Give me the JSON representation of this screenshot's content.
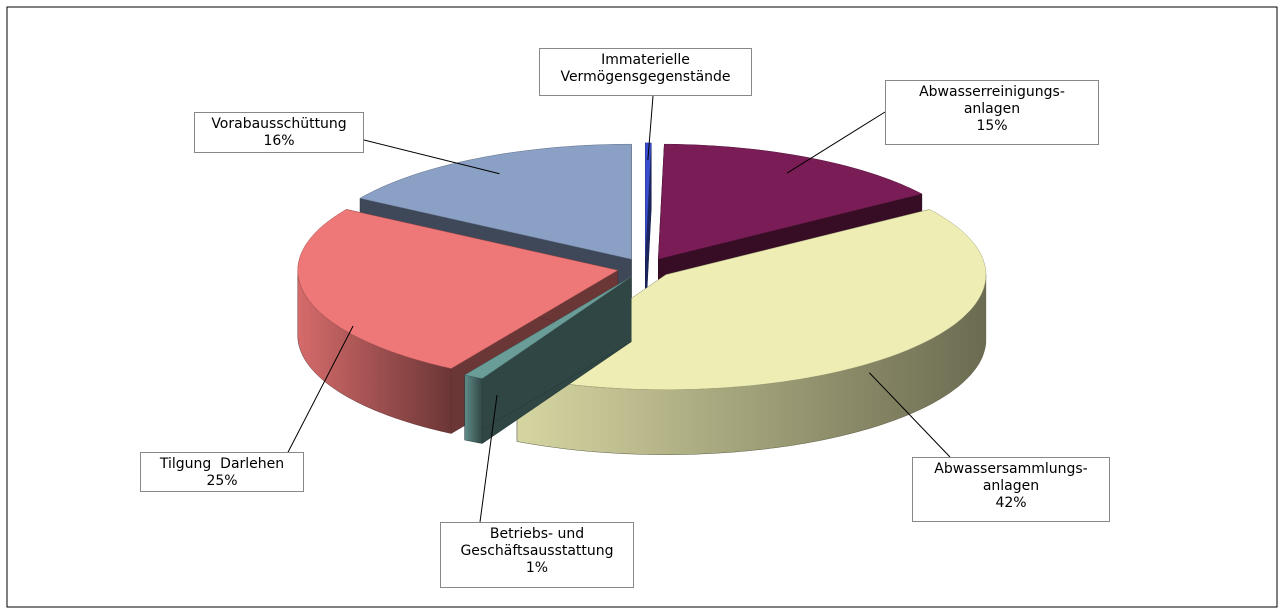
{
  "chart_data": {
    "type": "pie3d",
    "categories": [
      "Immaterielle\nVermögensgegenstände",
      "Abwasserreinigungs-\nanlagen",
      "Abwassersammlungs-\nanlagen",
      "Betriebs- und\nGeschäftsausstattung",
      "Tilgung  Darlehen",
      "Vorabausschüttung"
    ],
    "values": [
      0.3,
      15,
      42,
      1,
      25,
      16
    ],
    "value_labels": [
      null,
      "15%",
      "42%",
      "1%",
      "25%",
      "16%"
    ],
    "colors": [
      "#3a4fd0",
      "#7a1c55",
      "#eeeeb4",
      "#6a9c98",
      "#ee7777",
      "#8aa0c4"
    ]
  }
}
